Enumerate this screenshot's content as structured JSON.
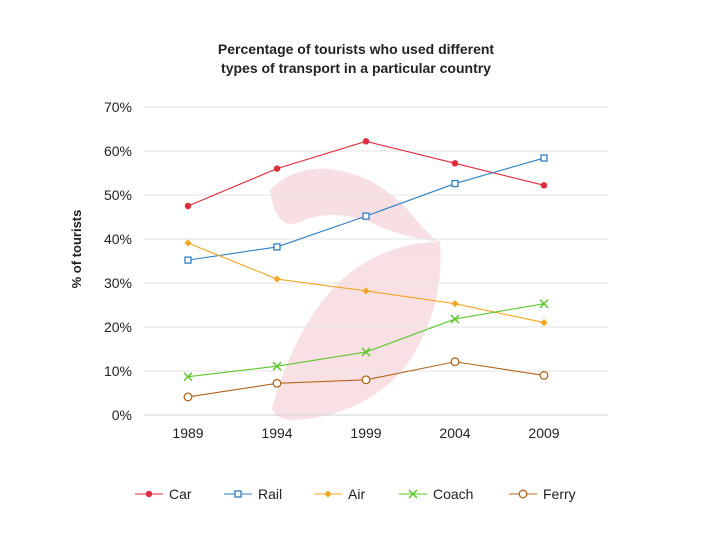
{
  "chart_data": {
    "type": "line",
    "title_lines": [
      "Percentage of tourists who used different",
      "types of transport in a particular country"
    ],
    "ylabel": "% of tourists",
    "xlabel": "",
    "categories": [
      "1989",
      "1994",
      "1999",
      "2004",
      "2009"
    ],
    "y_ticks": [
      "0%",
      "10%",
      "20%",
      "30%",
      "40%",
      "50%",
      "60%",
      "70%"
    ],
    "ylim": [
      0,
      70
    ],
    "grid": true,
    "legend_position": "bottom",
    "series": [
      {
        "name": "Car",
        "color": "#e02b3a",
        "marker": "filled-circle",
        "values": [
          47.5,
          56,
          62.2,
          57.2,
          52.2
        ]
      },
      {
        "name": "Rail",
        "color": "#2f7fc4",
        "marker": "hollow-square",
        "values": [
          35.2,
          38.2,
          45.2,
          52.6,
          58.4
        ]
      },
      {
        "name": "Air",
        "color": "#f5a623",
        "marker": "filled-diamond",
        "values": [
          39.1,
          30.9,
          28.2,
          25.3,
          21
        ]
      },
      {
        "name": "Coach",
        "color": "#5ec72e",
        "marker": "cross",
        "values": [
          8.7,
          11.1,
          14.3,
          21.8,
          25.3
        ]
      },
      {
        "name": "Ferry",
        "color": "#b5651d",
        "marker": "hollow-circle",
        "values": [
          4.1,
          7.2,
          8,
          12.1,
          9
        ]
      }
    ]
  }
}
